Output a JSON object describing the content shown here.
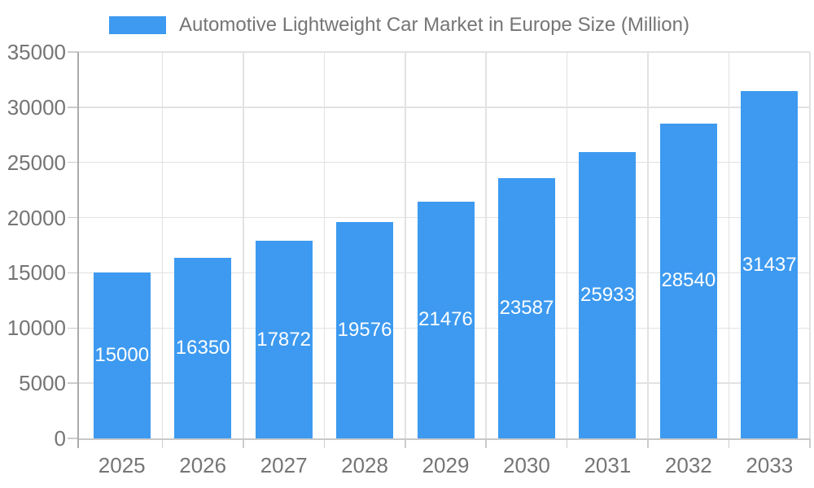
{
  "chart_data": {
    "type": "bar",
    "title": "Automotive Lightweight Car Market in Europe Size (Million)",
    "legend": {
      "position": "top",
      "label": "Automotive Lightweight Car Market in Europe Size (Million)"
    },
    "categories": [
      "2025",
      "2026",
      "2027",
      "2028",
      "2029",
      "2030",
      "2031",
      "2032",
      "2033"
    ],
    "series": [
      {
        "name": "Automotive Lightweight Car Market in Europe Size (Million)",
        "values": [
          15000,
          16350,
          17872,
          19576,
          21476,
          23587,
          25933,
          28540,
          31437
        ]
      }
    ],
    "bar_value_labels": [
      "15000",
      "16350",
      "17872",
      "19576",
      "21476",
      "23587",
      "25933",
      "28540",
      "31437"
    ],
    "xlabel": "",
    "ylabel": "",
    "ylim": [
      0,
      35000
    ],
    "yticks": [
      0,
      5000,
      10000,
      15000,
      20000,
      25000,
      30000,
      35000
    ],
    "ytick_labels": [
      "0",
      "5000",
      "10000",
      "15000",
      "20000",
      "25000",
      "30000",
      "35000"
    ],
    "grid": true,
    "bar_labels_inside": true,
    "colors": {
      "bar": "#3D9AF0",
      "bar_label": "#FFFFFF",
      "axis_text": "#757575",
      "legend_text": "#757575",
      "gridline": "#E2E2E2",
      "tick": "#CCCCCC",
      "axis_line": "#ABABAB",
      "baseline": "#C9C9C9",
      "background": "#FFFFFF"
    }
  }
}
